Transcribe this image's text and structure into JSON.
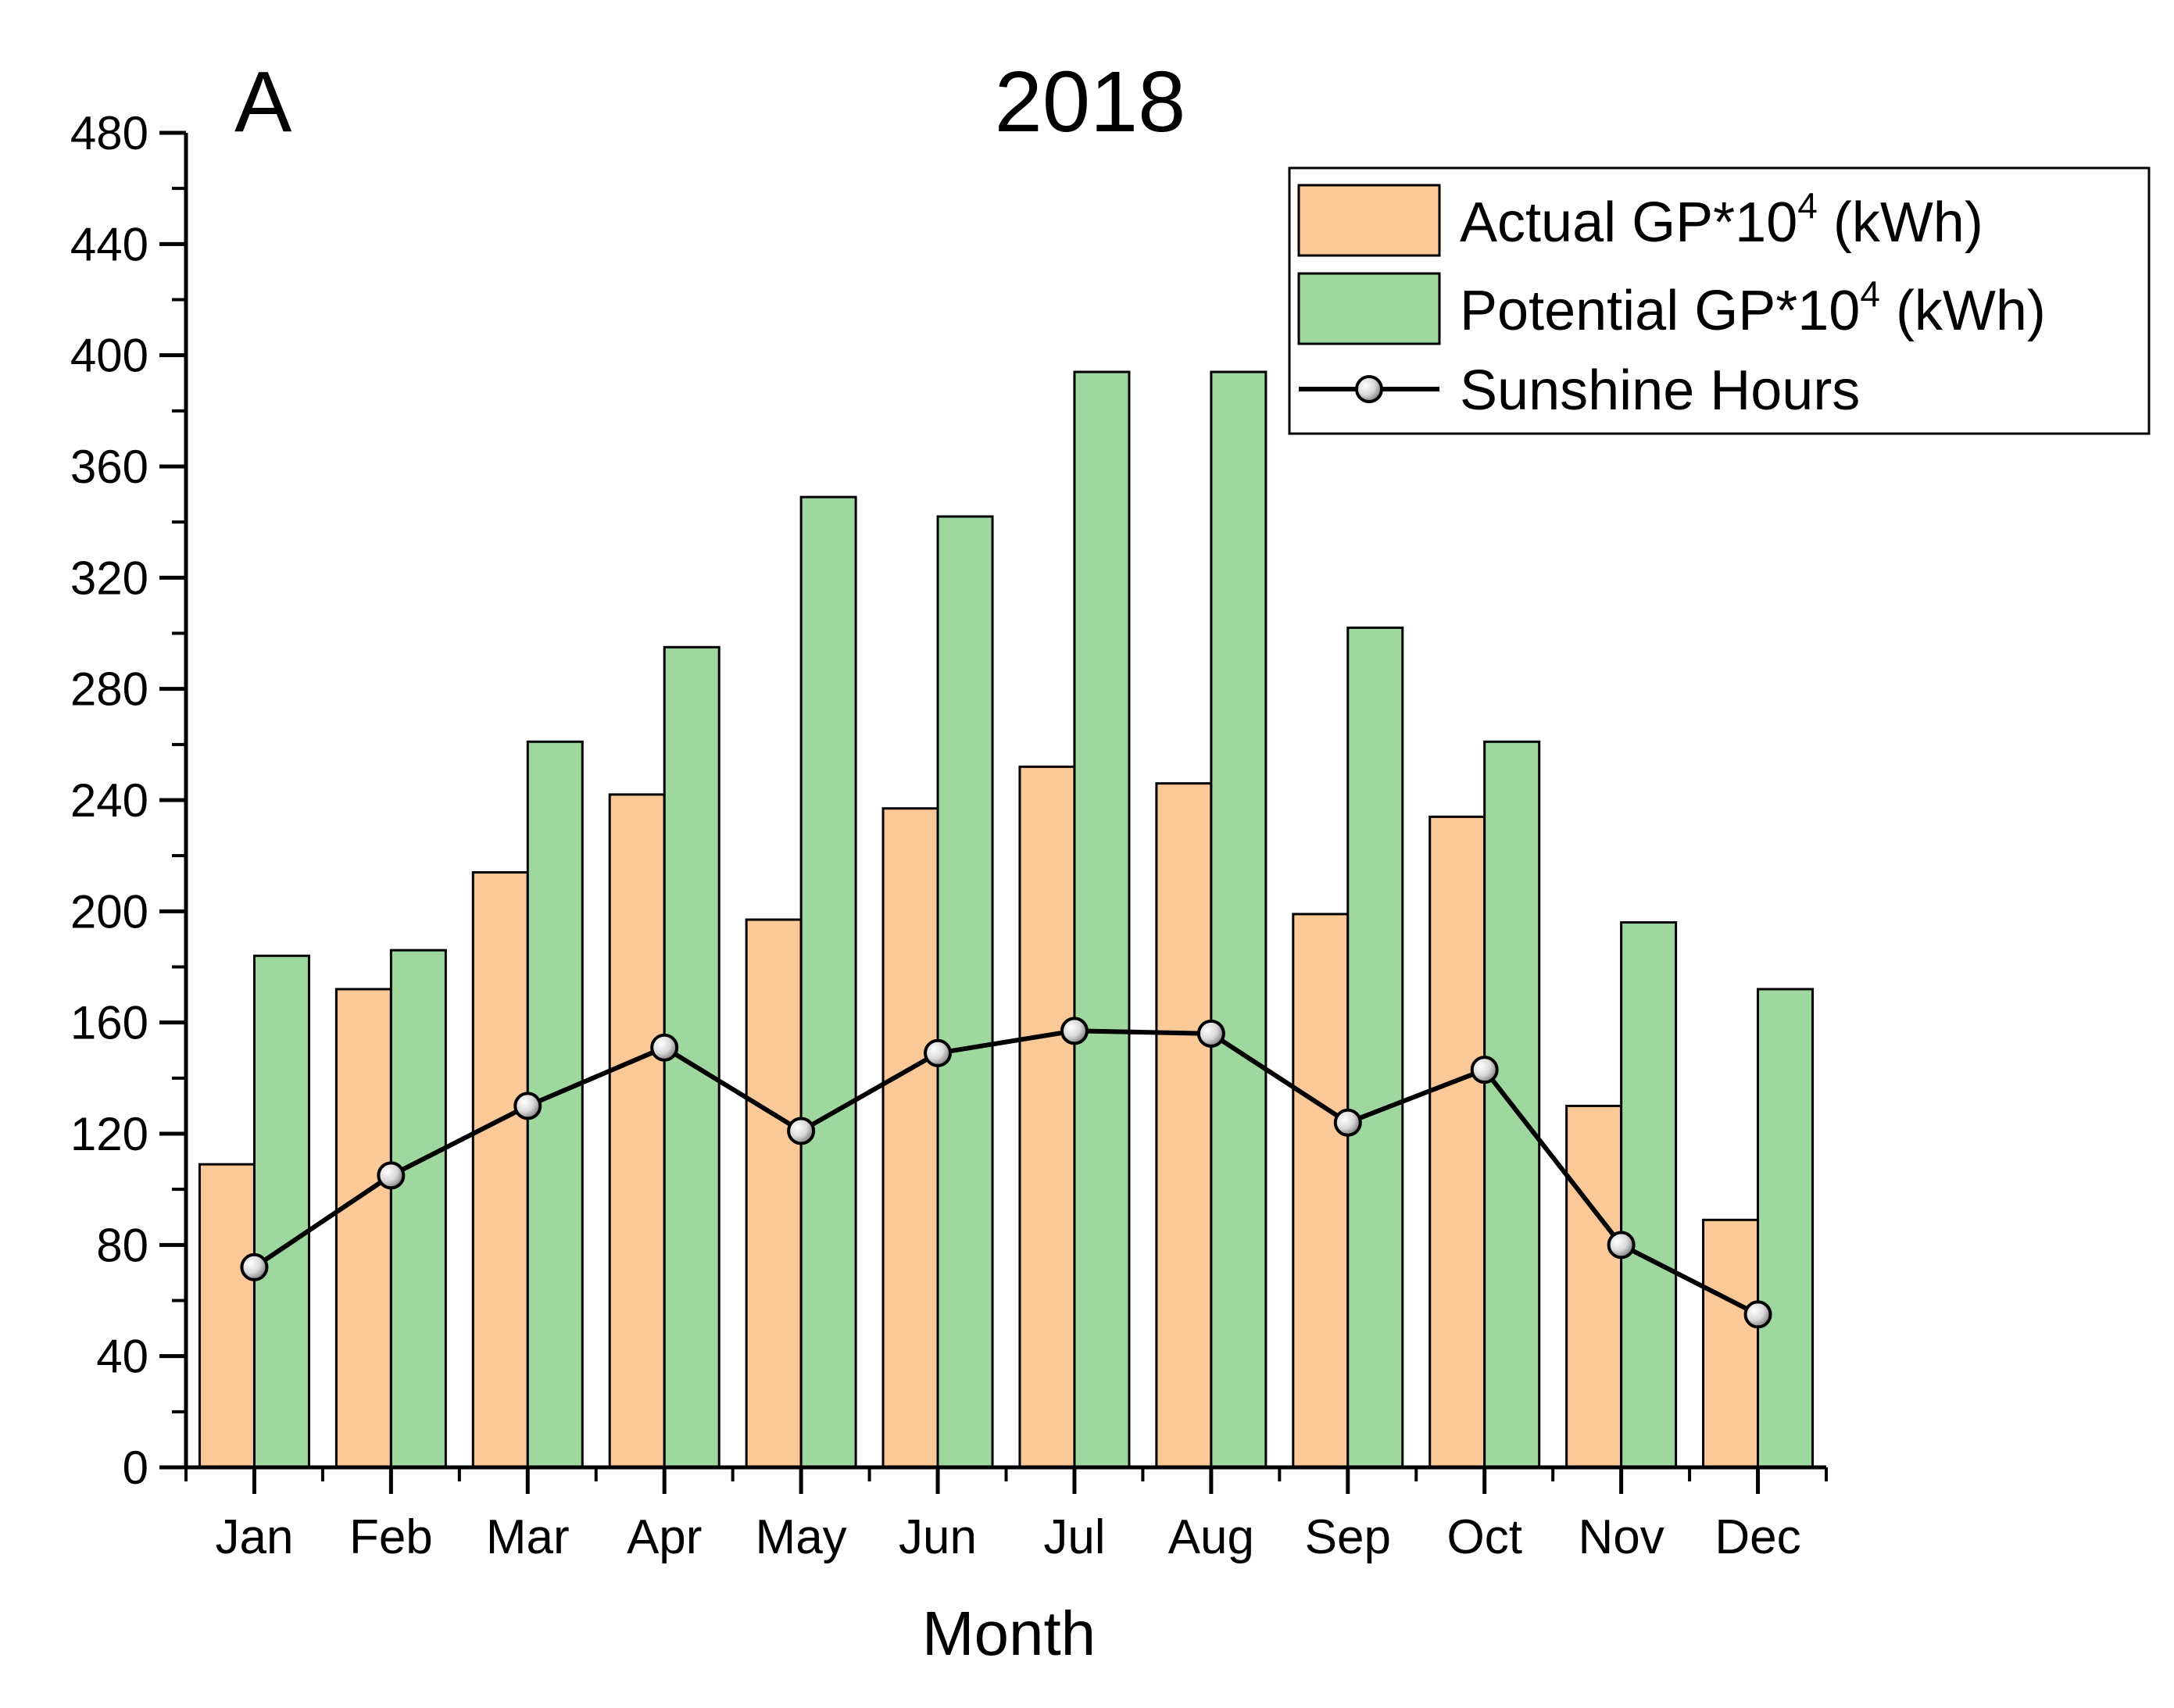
{
  "chart_data": {
    "type": "bar",
    "panel_label": "A",
    "title": "2018",
    "xlabel": "Month",
    "ylabel": "",
    "ylim": [
      0,
      480
    ],
    "yticks": [
      0,
      40,
      80,
      120,
      160,
      200,
      240,
      280,
      320,
      360,
      400,
      440,
      480
    ],
    "categories": [
      "Jan",
      "Feb",
      "Mar",
      "Apr",
      "May",
      "Jun",
      "Jul",
      "Aug",
      "Sep",
      "Oct",
      "Nov",
      "Dec"
    ],
    "series": [
      {
        "name": "Actual GP*10",
        "name_sup": "4",
        "name_suffix": " (kWh)",
        "type": "bar",
        "color": "#fbc898",
        "values": [
          109,
          172,
          214,
          242,
          197,
          237,
          252,
          246,
          199,
          234,
          130,
          89
        ]
      },
      {
        "name": "Potential GP*10",
        "name_sup": "4",
        "name_suffix": " (kWh)",
        "type": "bar",
        "color": "#9ed89e",
        "values": [
          184,
          186,
          261,
          295,
          349,
          342,
          394,
          394,
          302,
          261,
          196,
          172
        ]
      },
      {
        "name": "Sunshine Hours",
        "name_sup": "",
        "name_suffix": "",
        "type": "line",
        "color": "#000000",
        "values": [
          72,
          105,
          130,
          151,
          121,
          149,
          157,
          156,
          124,
          143,
          80,
          55
        ]
      }
    ],
    "legend_position": "top-right",
    "grid": false
  }
}
